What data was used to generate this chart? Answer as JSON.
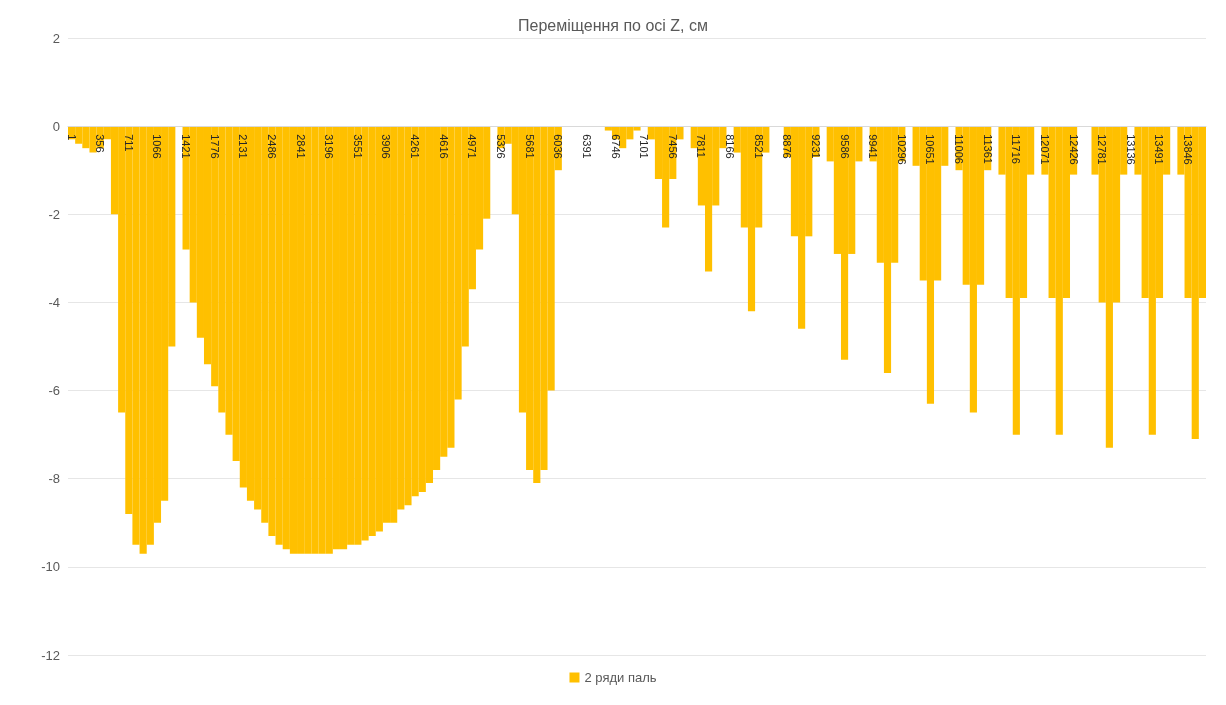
{
  "chart_data": {
    "type": "bar",
    "title": "Переміщення по осі Z, см",
    "categories": [
      "1",
      null,
      null,
      null,
      "356",
      null,
      null,
      null,
      "711",
      null,
      null,
      null,
      "1066",
      null,
      null,
      null,
      "1421",
      null,
      null,
      null,
      "1776",
      null,
      null,
      null,
      "2131",
      null,
      null,
      null,
      "2486",
      null,
      null,
      null,
      "2841",
      null,
      null,
      null,
      "3196",
      null,
      null,
      null,
      "3551",
      null,
      null,
      null,
      "3906",
      null,
      null,
      null,
      "4261",
      null,
      null,
      null,
      "4616",
      null,
      null,
      null,
      "4971",
      null,
      null,
      null,
      "5326",
      null,
      null,
      null,
      "5681",
      null,
      null,
      null,
      "6036",
      null,
      null,
      null,
      "6391",
      null,
      null,
      null,
      "6746",
      null,
      null,
      null,
      "7101",
      null,
      null,
      null,
      "7456",
      null,
      null,
      null,
      "7811",
      null,
      null,
      null,
      "8166",
      null,
      null,
      null,
      "8521",
      null,
      null,
      null,
      "8876",
      null,
      null,
      null,
      "9231",
      null,
      null,
      null,
      "9586",
      null,
      null,
      null,
      "9941",
      null,
      null,
      null,
      "10296",
      null,
      null,
      null,
      "10651",
      null,
      null,
      null,
      "11006",
      null,
      null,
      null,
      "11361",
      null,
      null,
      null,
      "11716",
      null,
      null,
      null,
      "12071",
      null,
      null,
      null,
      "12426",
      null,
      null,
      null,
      "12781",
      null,
      null,
      null,
      "13136",
      null,
      null,
      null,
      "13491",
      null,
      null,
      null,
      "13846",
      null,
      null
    ],
    "series": [
      {
        "name": "2 ряди паль",
        "color": "#ffc000",
        "values": [
          -0.3,
          -0.4,
          -0.5,
          -0.6,
          -0.5,
          -0.3,
          -2.0,
          -6.5,
          -8.8,
          -9.5,
          -9.7,
          -9.5,
          -9.0,
          -8.5,
          -5.0,
          0,
          -2.8,
          -4.0,
          -4.8,
          -5.4,
          -5.9,
          -6.5,
          -7.0,
          -7.6,
          -8.2,
          -8.5,
          -8.7,
          -9.0,
          -9.3,
          -9.5,
          -9.6,
          -9.7,
          -9.7,
          -9.7,
          -9.7,
          -9.7,
          -9.7,
          -9.6,
          -9.6,
          -9.5,
          -9.5,
          -9.4,
          -9.3,
          -9.2,
          -9.0,
          -9.0,
          -8.7,
          -8.6,
          -8.4,
          -8.3,
          -8.1,
          -7.8,
          -7.5,
          -7.3,
          -6.2,
          -5.0,
          -3.7,
          -2.8,
          -2.1,
          0,
          -0.5,
          -0.4,
          -2.0,
          -6.5,
          -7.8,
          -8.1,
          -7.8,
          -6.0,
          -1.0,
          0,
          0,
          0,
          0,
          0,
          0,
          -0.1,
          -0.3,
          -0.5,
          -0.3,
          -0.1,
          0,
          -0.3,
          -1.2,
          -2.3,
          -1.2,
          -0.3,
          0,
          -0.5,
          -1.8,
          -3.3,
          -1.8,
          -0.5,
          0,
          -0.6,
          -2.3,
          -4.2,
          -2.3,
          -0.6,
          0,
          0,
          -0.7,
          -2.5,
          -4.6,
          -2.5,
          -0.7,
          0,
          -0.8,
          -2.9,
          -5.3,
          -2.9,
          -0.8,
          0,
          -0.8,
          -3.1,
          -5.6,
          -3.1,
          -0.8,
          0,
          -0.9,
          -3.5,
          -6.3,
          -3.5,
          -0.9,
          0,
          -1.0,
          -3.6,
          -6.5,
          -3.6,
          -1.0,
          0,
          -1.1,
          -3.9,
          -7.0,
          -3.9,
          -1.1,
          0,
          -1.1,
          -3.9,
          -7.0,
          -3.9,
          -1.1,
          0,
          0,
          -1.1,
          -4.0,
          -7.3,
          -4.0,
          -1.1,
          0,
          -1.1,
          -3.9,
          -7.0,
          -3.9,
          -1.1,
          0,
          -1.1,
          -3.9,
          -7.1,
          -3.9
        ]
      }
    ],
    "ylim": [
      -12,
      2
    ],
    "yticks": [
      -12,
      -10,
      -8,
      -6,
      -4,
      -2,
      0,
      2
    ],
    "grid": "y",
    "legend": "bottom"
  }
}
